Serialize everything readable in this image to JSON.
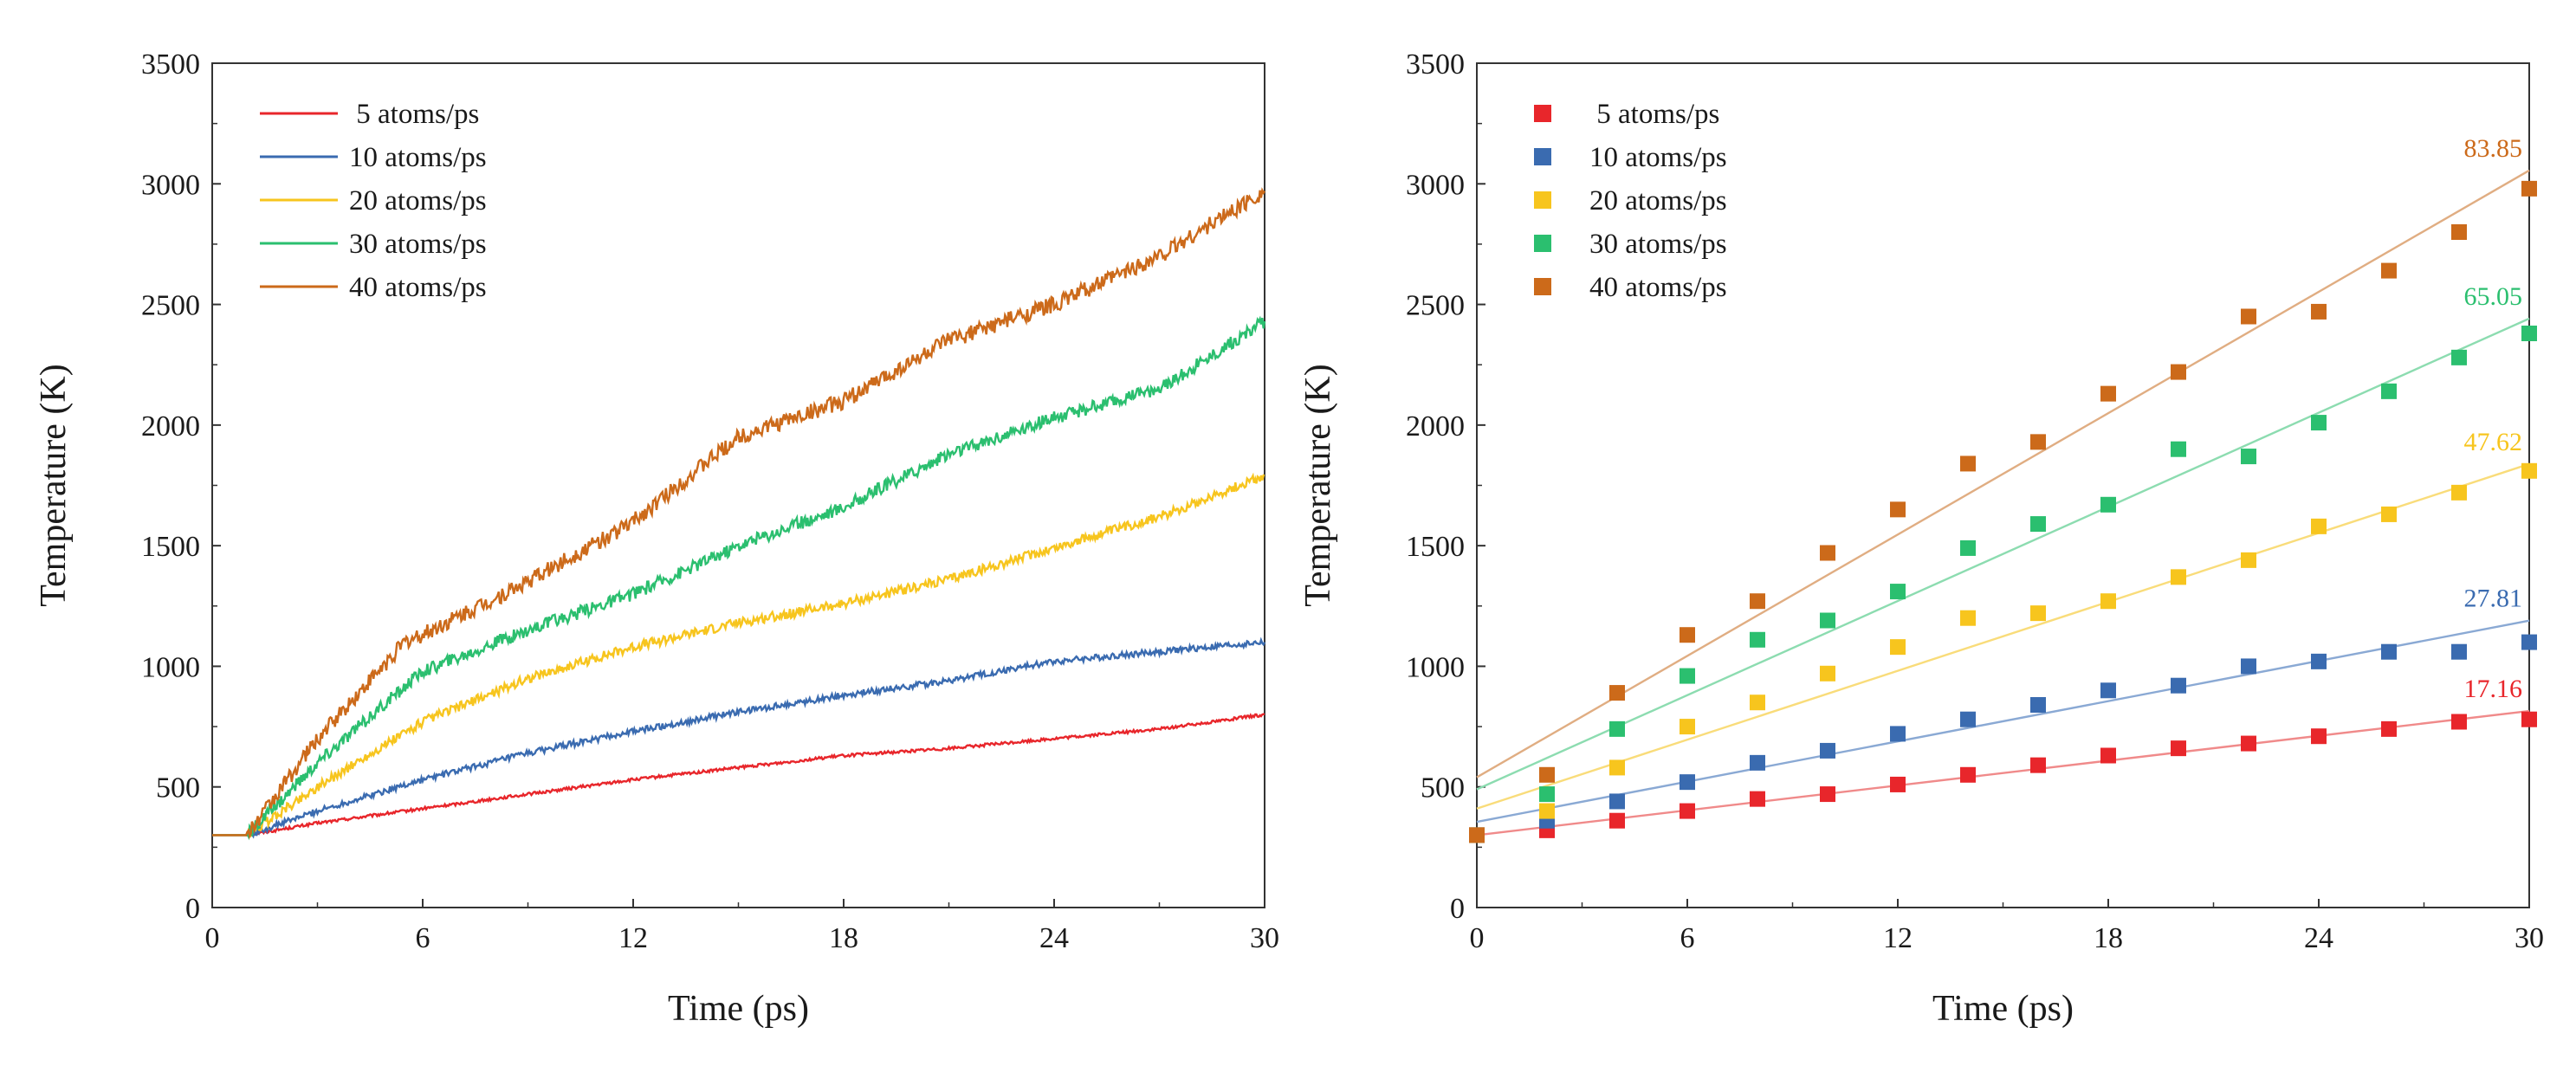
{
  "chart_data": [
    {
      "type": "line",
      "title": "",
      "xlabel": "Time (ps)",
      "ylabel": "Temperature (K)",
      "xlim": [
        0,
        30
      ],
      "ylim": [
        0,
        3500
      ],
      "xticks": [
        0,
        6,
        12,
        18,
        24,
        30
      ],
      "yticks": [
        0,
        500,
        1000,
        1500,
        2000,
        2500,
        3000,
        3500
      ],
      "legend_position": "top-left",
      "series": [
        {
          "name": " 5 atoms/ps",
          "color": "#e8262b",
          "x": [
            0,
            1,
            3,
            6,
            9,
            12,
            15,
            18,
            21,
            24,
            27,
            30
          ],
          "y": [
            300,
            300,
            350,
            410,
            470,
            530,
            580,
            630,
            660,
            700,
            740,
            800
          ]
        },
        {
          "name": "10 atoms/ps",
          "color": "#3a6bb0",
          "x": [
            0,
            1,
            3,
            6,
            9,
            12,
            15,
            18,
            21,
            24,
            27,
            30
          ],
          "y": [
            300,
            300,
            400,
            530,
            640,
            730,
            810,
            880,
            940,
            1020,
            1060,
            1100
          ]
        },
        {
          "name": "20 atoms/ps",
          "color": "#f7c51e",
          "x": [
            0,
            1,
            3,
            6,
            9,
            12,
            15,
            18,
            21,
            24,
            27,
            30
          ],
          "y": [
            300,
            300,
            500,
            770,
            950,
            1080,
            1180,
            1260,
            1360,
            1490,
            1620,
            1790
          ]
        },
        {
          "name": "30 atoms/ps",
          "color": "#2bbf6f",
          "x": [
            0,
            1,
            3,
            6,
            9,
            12,
            15,
            18,
            21,
            24,
            27,
            30
          ],
          "y": [
            300,
            300,
            600,
            980,
            1150,
            1300,
            1500,
            1660,
            1880,
            2030,
            2150,
            2430
          ]
        },
        {
          "name": "40 atoms/ps",
          "color": "#cc6a1a",
          "x": [
            0,
            1,
            3,
            5.5,
            6,
            9,
            12,
            15,
            18,
            21,
            24,
            27,
            30
          ],
          "y": [
            300,
            300,
            700,
            1100,
            1130,
            1350,
            1600,
            1950,
            2100,
            2350,
            2500,
            2700,
            2970
          ]
        }
      ]
    },
    {
      "type": "scatter",
      "title": "",
      "xlabel": "Time (ps)",
      "ylabel": "Temperature (K)",
      "xlim": [
        0,
        30
      ],
      "ylim": [
        0,
        3500
      ],
      "xticks": [
        0,
        6,
        12,
        18,
        24,
        30
      ],
      "yticks": [
        0,
        500,
        1000,
        1500,
        2000,
        2500,
        3000,
        3500
      ],
      "legend_position": "top-left",
      "series": [
        {
          "name": " 5 atoms/ps",
          "color": "#e8262b",
          "fit_color": "#f08a8a",
          "x": [
            0,
            2,
            4,
            6,
            8,
            10,
            12,
            14,
            16,
            18,
            20,
            22,
            24,
            26,
            28,
            30
          ],
          "y": [
            300,
            320,
            360,
            400,
            450,
            470,
            510,
            550,
            590,
            630,
            660,
            680,
            710,
            740,
            770,
            780
          ],
          "slope": 17.16,
          "intercept": 300,
          "slope_label": "17.16"
        },
        {
          "name": "10 atoms/ps",
          "color": "#3a6bb0",
          "fit_color": "#8aa9d4",
          "x": [
            0,
            2,
            4,
            6,
            8,
            10,
            12,
            14,
            16,
            18,
            20,
            22,
            24,
            26,
            28,
            30
          ],
          "y": [
            300,
            360,
            440,
            520,
            600,
            650,
            720,
            780,
            840,
            900,
            920,
            1000,
            1020,
            1060,
            1060,
            1100
          ],
          "slope": 27.81,
          "intercept": 355,
          "slope_label": "27.81"
        },
        {
          "name": "20 atoms/ps",
          "color": "#f7c51e",
          "fit_color": "#f9dc7a",
          "x": [
            0,
            2,
            4,
            6,
            8,
            10,
            12,
            14,
            16,
            18,
            20,
            22,
            24,
            26,
            28,
            30
          ],
          "y": [
            300,
            400,
            580,
            750,
            850,
            970,
            1080,
            1200,
            1220,
            1270,
            1370,
            1440,
            1580,
            1630,
            1720,
            1810
          ],
          "slope": 47.62,
          "intercept": 410,
          "slope_label": "47.62"
        },
        {
          "name": "30 atoms/ps",
          "color": "#2bbf6f",
          "fit_color": "#8cdcb0",
          "x": [
            0,
            2,
            4,
            6,
            8,
            10,
            12,
            14,
            16,
            18,
            20,
            22,
            24,
            26,
            28,
            30
          ],
          "y": [
            300,
            470,
            740,
            960,
            1110,
            1190,
            1310,
            1490,
            1590,
            1670,
            1900,
            1870,
            2010,
            2140,
            2280,
            2380
          ],
          "slope": 65.05,
          "intercept": 490,
          "slope_label": "65.05"
        },
        {
          "name": "40 atoms/ps",
          "color": "#cc6a1a",
          "fit_color": "#e0ad82",
          "x": [
            0,
            2,
            4,
            6,
            8,
            10,
            12,
            14,
            16,
            18,
            20,
            22,
            24,
            26,
            28,
            30
          ],
          "y": [
            300,
            550,
            890,
            1130,
            1270,
            1470,
            1650,
            1840,
            1930,
            2130,
            2220,
            2450,
            2470,
            2640,
            2800,
            2980
          ],
          "slope": 83.85,
          "intercept": 540,
          "slope_label": "83.85"
        }
      ]
    }
  ]
}
